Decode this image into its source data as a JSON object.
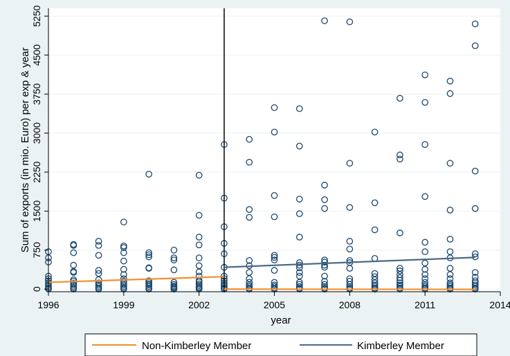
{
  "chart_data": {
    "type": "scatter",
    "title": "",
    "xlabel": "year",
    "ylabel": "Sum of exports (in mio. Euro) per exp &  year",
    "xlim": [
      1996,
      2014
    ],
    "ylim": [
      -50,
      5400
    ],
    "xticks": [
      "1996",
      "1999",
      "2002",
      "2005",
      "2008",
      "2011",
      "2014"
    ],
    "yticks": [
      "0",
      "750",
      "1500",
      "2250",
      "3000",
      "3750",
      "4500",
      "5250"
    ],
    "xtick_values": [
      1996,
      1999,
      2002,
      2005,
      2008,
      2011,
      2014
    ],
    "ytick_values": [
      0,
      750,
      1500,
      2250,
      3000,
      3750,
      4500,
      5250
    ],
    "vline_x": 2003,
    "grid": true,
    "legend_position": "bottom",
    "colors": {
      "background": "#eaf2f3",
      "plot_bg": "#ffffff",
      "grid": "#eaf2f3",
      "points": "#1a476f",
      "nonmember_line": "#f28e2b",
      "member_line": "#4a6a85"
    },
    "scatter_points": [
      [
        1996,
        0
      ],
      [
        1996,
        20
      ],
      [
        1996,
        50
      ],
      [
        1996,
        80
      ],
      [
        1996,
        120
      ],
      [
        1996,
        160
      ],
      [
        1996,
        200
      ],
      [
        1996,
        250
      ],
      [
        1996,
        520
      ],
      [
        1996,
        600
      ],
      [
        1996,
        720
      ],
      [
        1997,
        0
      ],
      [
        1997,
        20
      ],
      [
        1997,
        50
      ],
      [
        1997,
        80
      ],
      [
        1997,
        110
      ],
      [
        1997,
        150
      ],
      [
        1997,
        180
      ],
      [
        1997,
        320
      ],
      [
        1997,
        340
      ],
      [
        1997,
        460
      ],
      [
        1997,
        700
      ],
      [
        1997,
        840
      ],
      [
        1997,
        860
      ],
      [
        1998,
        0
      ],
      [
        1998,
        20
      ],
      [
        1998,
        50
      ],
      [
        1998,
        80
      ],
      [
        1998,
        120
      ],
      [
        1998,
        180
      ],
      [
        1998,
        300
      ],
      [
        1998,
        360
      ],
      [
        1998,
        650
      ],
      [
        1998,
        840
      ],
      [
        1998,
        920
      ],
      [
        1999,
        0
      ],
      [
        1999,
        20
      ],
      [
        1999,
        50
      ],
      [
        1999,
        80
      ],
      [
        1999,
        120
      ],
      [
        1999,
        150
      ],
      [
        1999,
        200
      ],
      [
        1999,
        280
      ],
      [
        1999,
        380
      ],
      [
        1999,
        540
      ],
      [
        1999,
        700
      ],
      [
        1999,
        800
      ],
      [
        1999,
        830
      ],
      [
        1999,
        1290
      ],
      [
        2000,
        0
      ],
      [
        2000,
        20
      ],
      [
        2000,
        50
      ],
      [
        2000,
        80
      ],
      [
        2000,
        100
      ],
      [
        2000,
        130
      ],
      [
        2000,
        160
      ],
      [
        2000,
        400
      ],
      [
        2000,
        410
      ],
      [
        2000,
        620
      ],
      [
        2000,
        660
      ],
      [
        2000,
        700
      ],
      [
        2000,
        2210
      ],
      [
        2001,
        0
      ],
      [
        2001,
        20
      ],
      [
        2001,
        40
      ],
      [
        2001,
        60
      ],
      [
        2001,
        90
      ],
      [
        2001,
        130
      ],
      [
        2001,
        370
      ],
      [
        2001,
        560
      ],
      [
        2001,
        600
      ],
      [
        2001,
        750
      ],
      [
        2002,
        0
      ],
      [
        2002,
        20
      ],
      [
        2002,
        40
      ],
      [
        2002,
        70
      ],
      [
        2002,
        100
      ],
      [
        2002,
        140
      ],
      [
        2002,
        170
      ],
      [
        2002,
        250
      ],
      [
        2002,
        330
      ],
      [
        2002,
        450
      ],
      [
        2002,
        600
      ],
      [
        2002,
        850
      ],
      [
        2002,
        1000
      ],
      [
        2002,
        1420
      ],
      [
        2002,
        2190
      ],
      [
        2003,
        0
      ],
      [
        2003,
        20
      ],
      [
        2003,
        50
      ],
      [
        2003,
        80
      ],
      [
        2003,
        120
      ],
      [
        2003,
        160
      ],
      [
        2003,
        200
      ],
      [
        2003,
        250
      ],
      [
        2003,
        420
      ],
      [
        2003,
        680
      ],
      [
        2003,
        880
      ],
      [
        2003,
        1200
      ],
      [
        2003,
        1750
      ],
      [
        2003,
        2780
      ],
      [
        2004,
        0
      ],
      [
        2004,
        20
      ],
      [
        2004,
        50
      ],
      [
        2004,
        80
      ],
      [
        2004,
        130
      ],
      [
        2004,
        200
      ],
      [
        2004,
        320
      ],
      [
        2004,
        450
      ],
      [
        2004,
        550
      ],
      [
        2004,
        1380
      ],
      [
        2004,
        1530
      ],
      [
        2004,
        2440
      ],
      [
        2004,
        2880
      ],
      [
        2005,
        0
      ],
      [
        2005,
        20
      ],
      [
        2005,
        50
      ],
      [
        2005,
        80
      ],
      [
        2005,
        130
      ],
      [
        2005,
        360
      ],
      [
        2005,
        560
      ],
      [
        2005,
        610
      ],
      [
        2005,
        650
      ],
      [
        2005,
        1390
      ],
      [
        2005,
        1800
      ],
      [
        2005,
        3020
      ],
      [
        2005,
        3490
      ],
      [
        2006,
        0
      ],
      [
        2006,
        20
      ],
      [
        2006,
        50
      ],
      [
        2006,
        90
      ],
      [
        2006,
        130
      ],
      [
        2006,
        250
      ],
      [
        2006,
        320
      ],
      [
        2006,
        410
      ],
      [
        2006,
        460
      ],
      [
        2006,
        510
      ],
      [
        2006,
        1000
      ],
      [
        2006,
        1450
      ],
      [
        2006,
        1730
      ],
      [
        2006,
        2750
      ],
      [
        2006,
        3470
      ],
      [
        2007,
        0
      ],
      [
        2007,
        20
      ],
      [
        2007,
        50
      ],
      [
        2007,
        90
      ],
      [
        2007,
        150
      ],
      [
        2007,
        250
      ],
      [
        2007,
        420
      ],
      [
        2007,
        460
      ],
      [
        2007,
        520
      ],
      [
        2007,
        560
      ],
      [
        2007,
        1550
      ],
      [
        2007,
        1720
      ],
      [
        2007,
        2000
      ],
      [
        2007,
        5160
      ],
      [
        2008,
        0
      ],
      [
        2008,
        20
      ],
      [
        2008,
        50
      ],
      [
        2008,
        90
      ],
      [
        2008,
        150
      ],
      [
        2008,
        200
      ],
      [
        2008,
        400
      ],
      [
        2008,
        510
      ],
      [
        2008,
        550
      ],
      [
        2008,
        770
      ],
      [
        2008,
        920
      ],
      [
        2008,
        1570
      ],
      [
        2008,
        2420
      ],
      [
        2008,
        5140
      ],
      [
        2009,
        0
      ],
      [
        2009,
        20
      ],
      [
        2009,
        50
      ],
      [
        2009,
        80
      ],
      [
        2009,
        120
      ],
      [
        2009,
        180
      ],
      [
        2009,
        240
      ],
      [
        2009,
        300
      ],
      [
        2009,
        590
      ],
      [
        2009,
        1140
      ],
      [
        2009,
        1660
      ],
      [
        2009,
        3020
      ],
      [
        2010,
        0
      ],
      [
        2010,
        20
      ],
      [
        2010,
        50
      ],
      [
        2010,
        80
      ],
      [
        2010,
        120
      ],
      [
        2010,
        170
      ],
      [
        2010,
        220
      ],
      [
        2010,
        280
      ],
      [
        2010,
        350
      ],
      [
        2010,
        400
      ],
      [
        2010,
        1080
      ],
      [
        2010,
        2500
      ],
      [
        2010,
        2580
      ],
      [
        2010,
        3670
      ],
      [
        2011,
        0
      ],
      [
        2011,
        20
      ],
      [
        2011,
        50
      ],
      [
        2011,
        80
      ],
      [
        2011,
        130
      ],
      [
        2011,
        200
      ],
      [
        2011,
        280
      ],
      [
        2011,
        380
      ],
      [
        2011,
        500
      ],
      [
        2011,
        720
      ],
      [
        2011,
        900
      ],
      [
        2011,
        1780
      ],
      [
        2011,
        2780
      ],
      [
        2011,
        3590
      ],
      [
        2011,
        4120
      ],
      [
        2012,
        0
      ],
      [
        2012,
        20
      ],
      [
        2012,
        50
      ],
      [
        2012,
        80
      ],
      [
        2012,
        120
      ],
      [
        2012,
        200
      ],
      [
        2012,
        280
      ],
      [
        2012,
        400
      ],
      [
        2012,
        600
      ],
      [
        2012,
        720
      ],
      [
        2012,
        960
      ],
      [
        2012,
        1520
      ],
      [
        2012,
        2420
      ],
      [
        2012,
        3760
      ],
      [
        2012,
        4000
      ],
      [
        2013,
        0
      ],
      [
        2013,
        20
      ],
      [
        2013,
        50
      ],
      [
        2013,
        80
      ],
      [
        2013,
        120
      ],
      [
        2013,
        160
      ],
      [
        2013,
        230
      ],
      [
        2013,
        320
      ],
      [
        2013,
        620
      ],
      [
        2013,
        680
      ],
      [
        2013,
        1550
      ],
      [
        2013,
        2270
      ],
      [
        2013,
        4680
      ],
      [
        2013,
        5100
      ]
    ],
    "series": [
      {
        "name": "Non-Kimberley Member",
        "segments": [
          [
            [
              1996,
              130
            ],
            [
              2003,
              240
            ]
          ],
          [
            [
              2003,
              0
            ],
            [
              2013,
              -5
            ]
          ]
        ]
      },
      {
        "name": "Kimberley Member",
        "segments": [
          [
            [
              2003,
              420
            ],
            [
              2013,
              610
            ]
          ]
        ]
      }
    ]
  }
}
